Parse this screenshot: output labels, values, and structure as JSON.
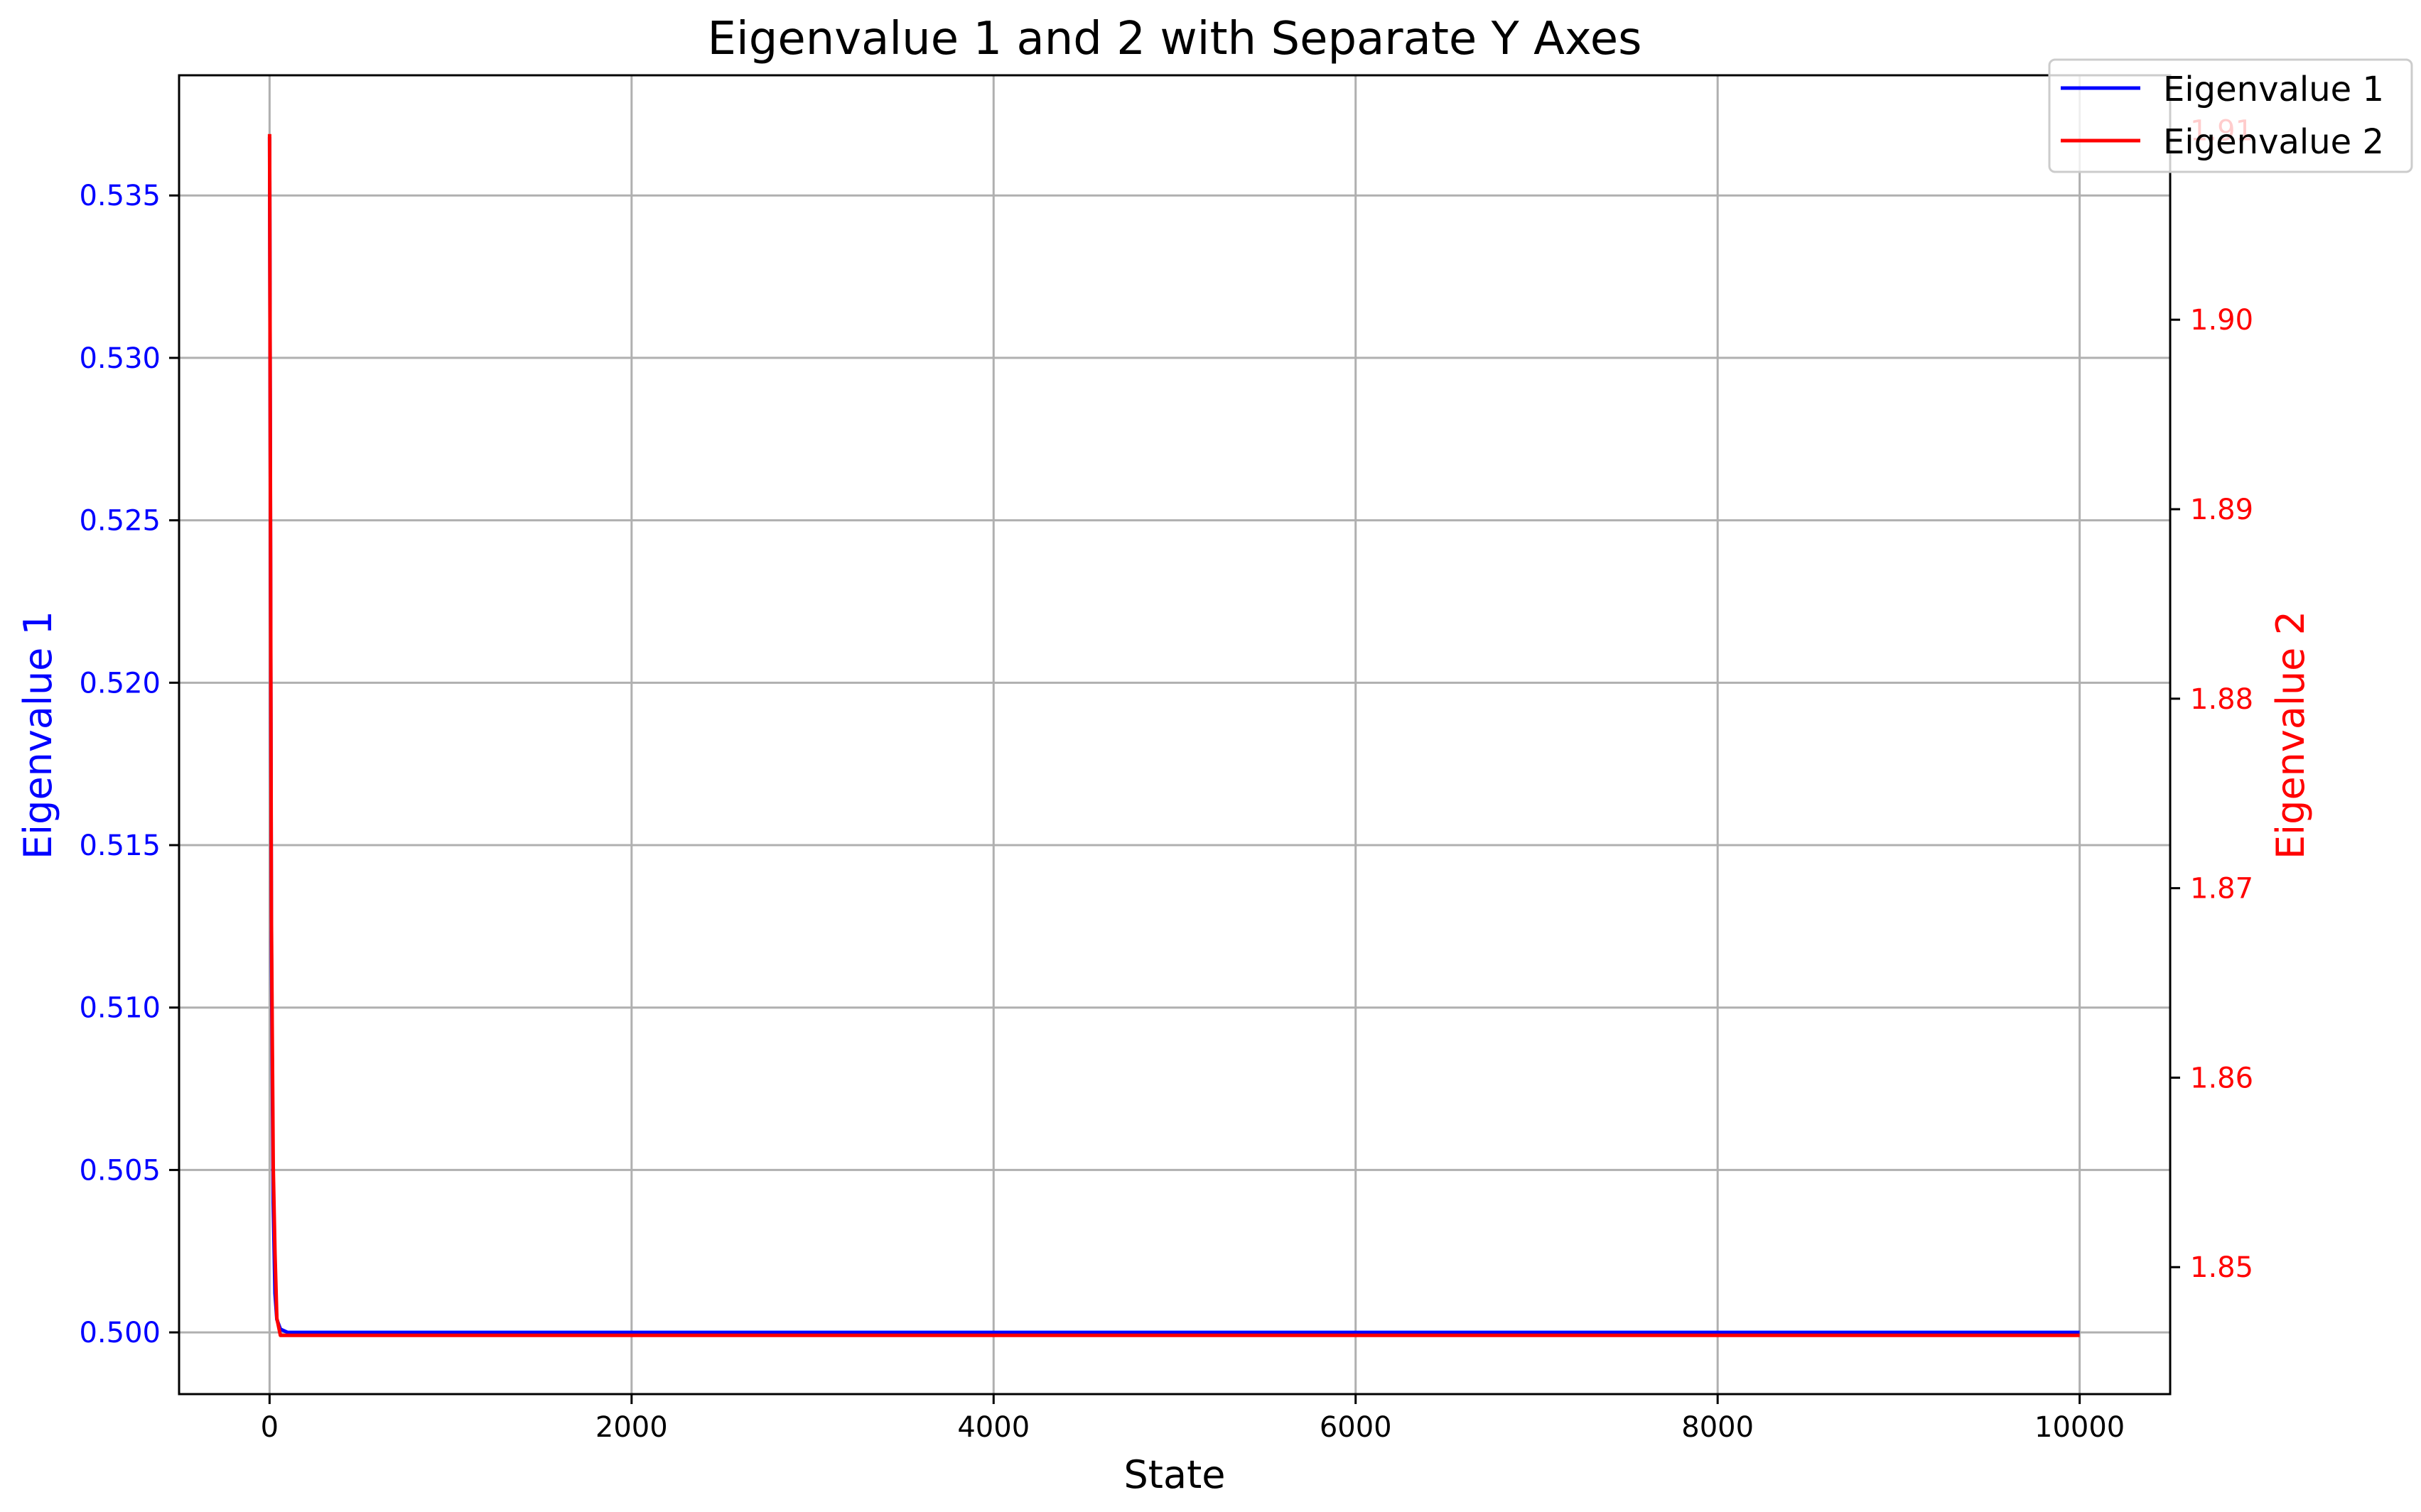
{
  "chart_data": {
    "type": "line",
    "title": "Eigenvalue 1 and 2 with Separate Y Axes",
    "xlabel": "State",
    "ylabel_left": "Eigenvalue 1",
    "ylabel_right": "Eigenvalue 2",
    "xlim": [
      -500,
      10500
    ],
    "ylim_left": [
      0.4981,
      0.5387
    ],
    "ylim_right": [
      1.8433,
      1.9129
    ],
    "x_ticks": [
      0,
      2000,
      4000,
      6000,
      8000,
      10000
    ],
    "x_tick_labels": [
      "0",
      "2000",
      "4000",
      "6000",
      "8000",
      "10000"
    ],
    "y_left_ticks": [
      0.5,
      0.505,
      0.51,
      0.515,
      0.52,
      0.525,
      0.53,
      0.535
    ],
    "y_left_tick_labels": [
      "0.500",
      "0.505",
      "0.510",
      "0.515",
      "0.520",
      "0.525",
      "0.530",
      "0.535"
    ],
    "y_right_ticks": [
      1.85,
      1.86,
      1.87,
      1.88,
      1.89,
      1.9,
      1.91
    ],
    "y_right_tick_labels": [
      "1.85",
      "1.86",
      "1.87",
      "1.88",
      "1.89",
      "1.90",
      "1.91"
    ],
    "grid": true,
    "legend_position": "top-right",
    "series": [
      {
        "name": "Eigenvalue 1",
        "axis": "left",
        "color": "#0000ff",
        "x": [
          0,
          10,
          20,
          30,
          40,
          60,
          100,
          10000
        ],
        "values": [
          0.5368,
          0.512,
          0.504,
          0.5012,
          0.5004,
          0.5001,
          0.5,
          0.5
        ]
      },
      {
        "name": "Eigenvalue 2",
        "axis": "right",
        "color": "#ff0000",
        "x": [
          0,
          10,
          20,
          30,
          40,
          60,
          100,
          10000
        ],
        "values": [
          1.9098,
          1.8686,
          1.8553,
          1.8507,
          1.8473,
          1.8464,
          1.8464,
          1.8464
        ]
      }
    ],
    "colors": {
      "left_axis": "#0000ff",
      "right_axis": "#ff0000",
      "grid": "#b0b0b0",
      "frame": "#000000"
    }
  }
}
